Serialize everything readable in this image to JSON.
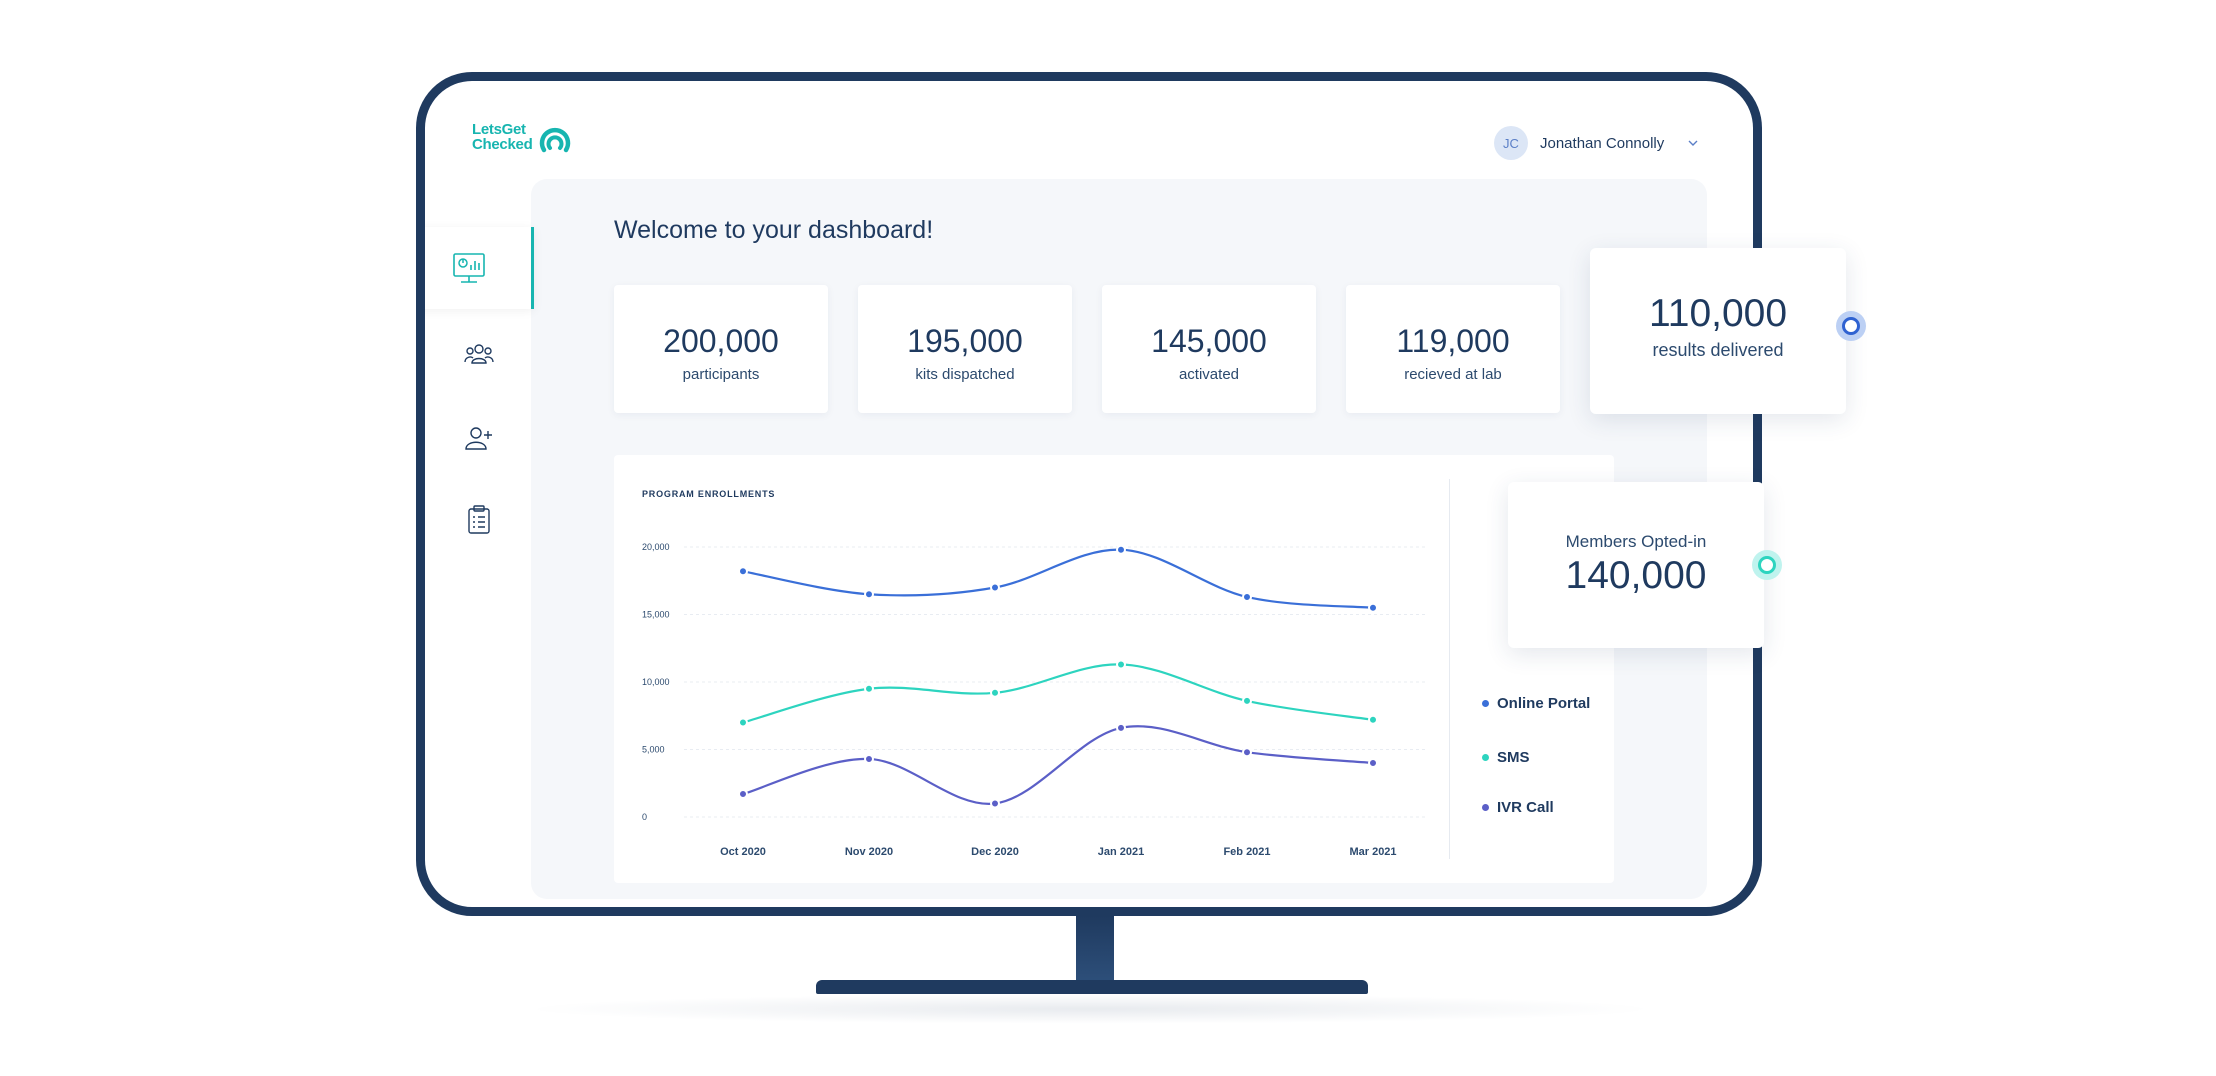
{
  "brand": {
    "name_line1": "LetsGet",
    "name_line2": "Checked",
    "accent": "#17b5b0"
  },
  "user": {
    "initials": "JC",
    "name": "Jonathan Connolly"
  },
  "sidebar": {
    "items": [
      {
        "icon": "dashboard-monitor-icon",
        "active": true
      },
      {
        "icon": "group-icon",
        "active": false
      },
      {
        "icon": "add-user-icon",
        "active": false
      },
      {
        "icon": "clipboard-list-icon",
        "active": false
      }
    ]
  },
  "welcome": "Welcome to your dashboard!",
  "stats": [
    {
      "value": "200,000",
      "label": "participants"
    },
    {
      "value": "195,000",
      "label": "kits dispatched"
    },
    {
      "value": "145,000",
      "label": "activated"
    },
    {
      "value": "119,000",
      "label": "recieved at lab"
    }
  ],
  "highlight_results": {
    "value": "110,000",
    "label": "results delivered"
  },
  "highlight_members": {
    "label": "Members Opted-in",
    "value": "140,000"
  },
  "colors": {
    "navy": "#1f3a5f",
    "online_portal": "#3a6fd8",
    "sms": "#2dd4bf",
    "ivr_call": "#5b5fc7"
  },
  "chart_data": {
    "type": "line",
    "title": "PROGRAM ENROLLMENTS",
    "xlabel": "",
    "ylabel": "",
    "x": [
      "Oct 2020",
      "Nov 2020",
      "Dec 2020",
      "Jan 2021",
      "Feb 2021",
      "Mar 2021"
    ],
    "y_ticks": [
      "20,000",
      "15,000",
      "10,000",
      "5,000",
      "0"
    ],
    "ylim": [
      0,
      20000
    ],
    "grid": true,
    "legend_position": "right",
    "series": [
      {
        "name": "Online Portal",
        "color": "#3a6fd8",
        "values": [
          18200,
          16500,
          17000,
          19800,
          16300,
          15500
        ]
      },
      {
        "name": "SMS",
        "color": "#2dd4bf",
        "values": [
          7000,
          9500,
          9200,
          11300,
          8600,
          7200
        ]
      },
      {
        "name": "IVR Call",
        "color": "#5b5fc7",
        "values": [
          1700,
          4300,
          1000,
          6600,
          4800,
          4000
        ]
      }
    ]
  }
}
